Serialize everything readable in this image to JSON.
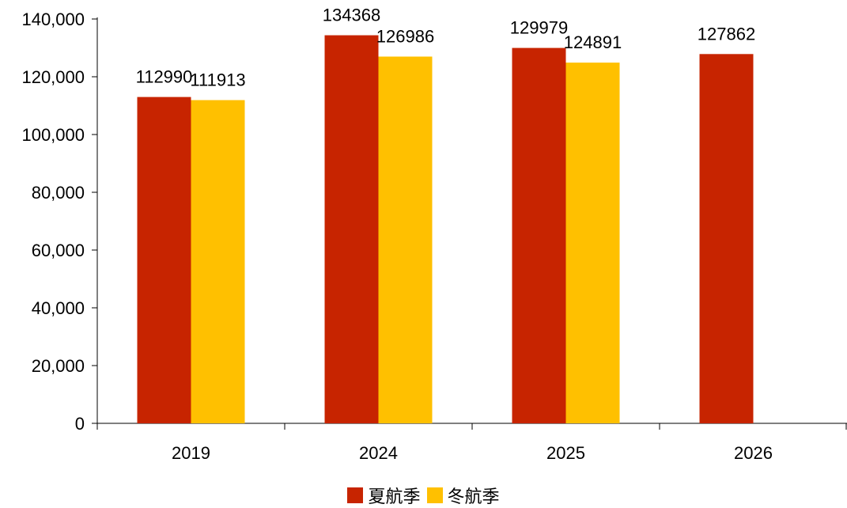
{
  "colors": {
    "summer": "#C72400",
    "winter": "#FFC000"
  },
  "chart_data": {
    "type": "bar",
    "title": "",
    "xlabel": "",
    "ylabel": "",
    "categories": [
      "2019",
      "2024",
      "2025",
      "2026"
    ],
    "ylim": [
      0,
      140000
    ],
    "yticks": [
      0,
      20000,
      40000,
      60000,
      80000,
      100000,
      120000,
      140000
    ],
    "ytick_labels": [
      "0",
      "20,000",
      "40,000",
      "60,000",
      "80,000",
      "100,000",
      "120,000",
      "140,000"
    ],
    "grid": false,
    "legend_position": "bottom-center",
    "series": [
      {
        "name": "夏航季",
        "color": "#C72400",
        "values": [
          112990,
          134368,
          129979,
          127862
        ]
      },
      {
        "name": "冬航季",
        "color": "#FFC000",
        "values": [
          111913,
          126986,
          124891,
          null
        ]
      }
    ]
  }
}
